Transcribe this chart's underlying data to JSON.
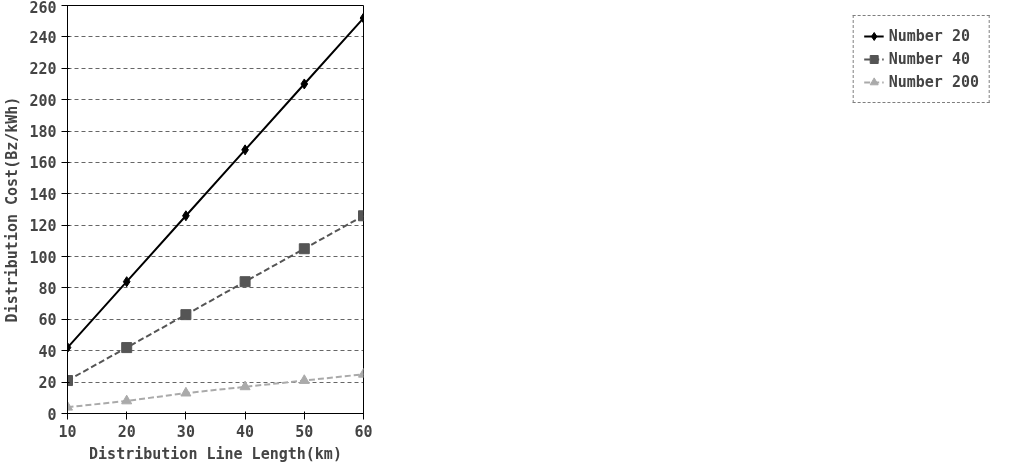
{
  "chart_data": {
    "type": "line",
    "xlabel": "Distribution Line Length(km)",
    "ylabel": "Distribution Cost(Bz/kWh)",
    "x": [
      10,
      20,
      30,
      40,
      50,
      60
    ],
    "series": [
      {
        "name": "Number 20",
        "color": "#000000",
        "marker": "diamond",
        "line_style": "solid",
        "values": [
          42,
          84,
          126,
          168,
          210,
          252
        ]
      },
      {
        "name": "Number 40",
        "color": "#555555",
        "marker": "square",
        "line_style": "dashed",
        "values": [
          21,
          42,
          63,
          84,
          105,
          126
        ]
      },
      {
        "name": "Number 200",
        "color": "#aaaaaa",
        "marker": "triangle",
        "line_style": "dashed",
        "values": [
          4,
          8,
          13,
          17,
          21,
          25
        ]
      }
    ],
    "xlim": [
      10,
      60
    ],
    "xticks": [
      10,
      20,
      30,
      40,
      50,
      60
    ],
    "ylim": [
      0,
      260
    ],
    "yticks": [
      0,
      20,
      40,
      60,
      80,
      100,
      120,
      140,
      160,
      180,
      200,
      220,
      240,
      260
    ],
    "grid": "y",
    "legend": "right"
  }
}
